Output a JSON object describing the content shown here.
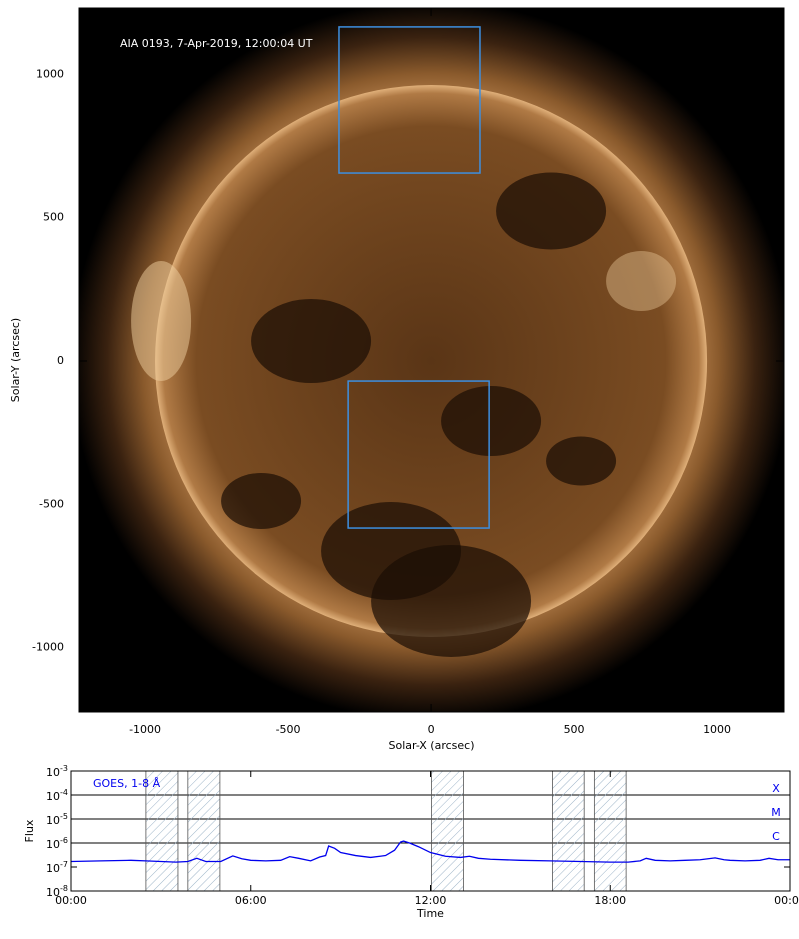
{
  "chart_data": [
    {
      "type": "image",
      "annotation": "AIA 0193, 7-Apr-2019, 12:00:04 UT",
      "xlabel": "Solar-X (arcsec)",
      "ylabel": "Solar-Y (arcsec)",
      "xlim": [
        -1231,
        1234
      ],
      "ylim": [
        -1225,
        1232
      ],
      "xticks": [
        -1000,
        -500,
        0,
        500,
        1000
      ],
      "yticks": [
        -1000,
        -500,
        0,
        500,
        1000
      ],
      "boxes": [
        {
          "x": [
            -322,
            171
          ],
          "y": [
            656,
            1166
          ]
        },
        {
          "x": [
            -290,
            203
          ],
          "y": [
            -583,
            -70
          ]
        }
      ],
      "box_color": "#3d8fe0"
    },
    {
      "type": "line",
      "log_y": true,
      "xlabel": "Time",
      "ylabel": "Flux",
      "xlim": [
        0,
        24
      ],
      "ylim": [
        1e-08,
        0.001
      ],
      "xticks": [
        {
          "value": 0,
          "label": "00:00"
        },
        {
          "value": 6,
          "label": "06:00"
        },
        {
          "value": 12,
          "label": "12:00"
        },
        {
          "value": 18,
          "label": "18:00"
        },
        {
          "value": 24,
          "label": "00:00"
        }
      ],
      "yticks": [
        {
          "value": 0.001,
          "label": "10",
          "exponent": "-3"
        },
        {
          "value": 0.0001,
          "label": "10",
          "exponent": "-4"
        },
        {
          "value": 1e-05,
          "label": "10",
          "exponent": "-5"
        },
        {
          "value": 1e-06,
          "label": "10",
          "exponent": "-6"
        },
        {
          "value": 1e-07,
          "label": "10",
          "exponent": "-7"
        },
        {
          "value": 1e-08,
          "label": "10",
          "exponent": "-8"
        }
      ],
      "levels": [
        {
          "value": 0.0001,
          "label": "X"
        },
        {
          "value": 1e-05,
          "label": "M"
        },
        {
          "value": 1e-06,
          "label": "C"
        }
      ],
      "intervals": [
        [
          2.5,
          3.57
        ],
        [
          3.9,
          4.97
        ],
        [
          12.03,
          13.1
        ],
        [
          16.07,
          17.13
        ],
        [
          17.47,
          18.53
        ]
      ],
      "x": [
        0,
        1,
        2,
        2.5,
        3,
        3.5,
        3.9,
        4.2,
        4.5,
        5,
        5.4,
        5.7,
        6,
        6.5,
        7,
        7.3,
        7.6,
        8,
        8.3,
        8.5,
        8.6,
        8.8,
        9,
        9.5,
        10,
        10.5,
        10.8,
        11,
        11.1,
        11.3,
        11.6,
        12,
        12.5,
        13,
        13.3,
        13.6,
        14,
        15,
        16,
        17,
        18,
        18.6,
        19,
        19.2,
        19.5,
        20,
        20.5,
        21,
        21.5,
        21.8,
        22,
        22.5,
        23,
        23.3,
        23.6,
        24
      ],
      "series": [
        {
          "name": "GOES, 1-8 Å",
          "color": "#0000ee",
          "values": [
            1.7e-07,
            1.8e-07,
            1.9e-07,
            1.8e-07,
            1.7e-07,
            1.6e-07,
            1.7e-07,
            2.3e-07,
            1.7e-07,
            1.7e-07,
            2.9e-07,
            2.2e-07,
            1.9e-07,
            1.8e-07,
            1.9e-07,
            2.7e-07,
            2.3e-07,
            1.8e-07,
            2.6e-07,
            3e-07,
            7.5e-07,
            6e-07,
            4e-07,
            3e-07,
            2.5e-07,
            3e-07,
            5e-07,
            1.1e-06,
            1.2e-06,
            1e-06,
            7e-07,
            4e-07,
            2.8e-07,
            2.5e-07,
            2.8e-07,
            2.3e-07,
            2.1e-07,
            1.9e-07,
            1.8e-07,
            1.7e-07,
            1.6e-07,
            1.6e-07,
            1.8e-07,
            2.3e-07,
            1.9e-07,
            1.8e-07,
            1.9e-07,
            2e-07,
            2.4e-07,
            2e-07,
            1.9e-07,
            1.8e-07,
            1.9e-07,
            2.3e-07,
            2e-07,
            2e-07
          ]
        }
      ]
    }
  ]
}
